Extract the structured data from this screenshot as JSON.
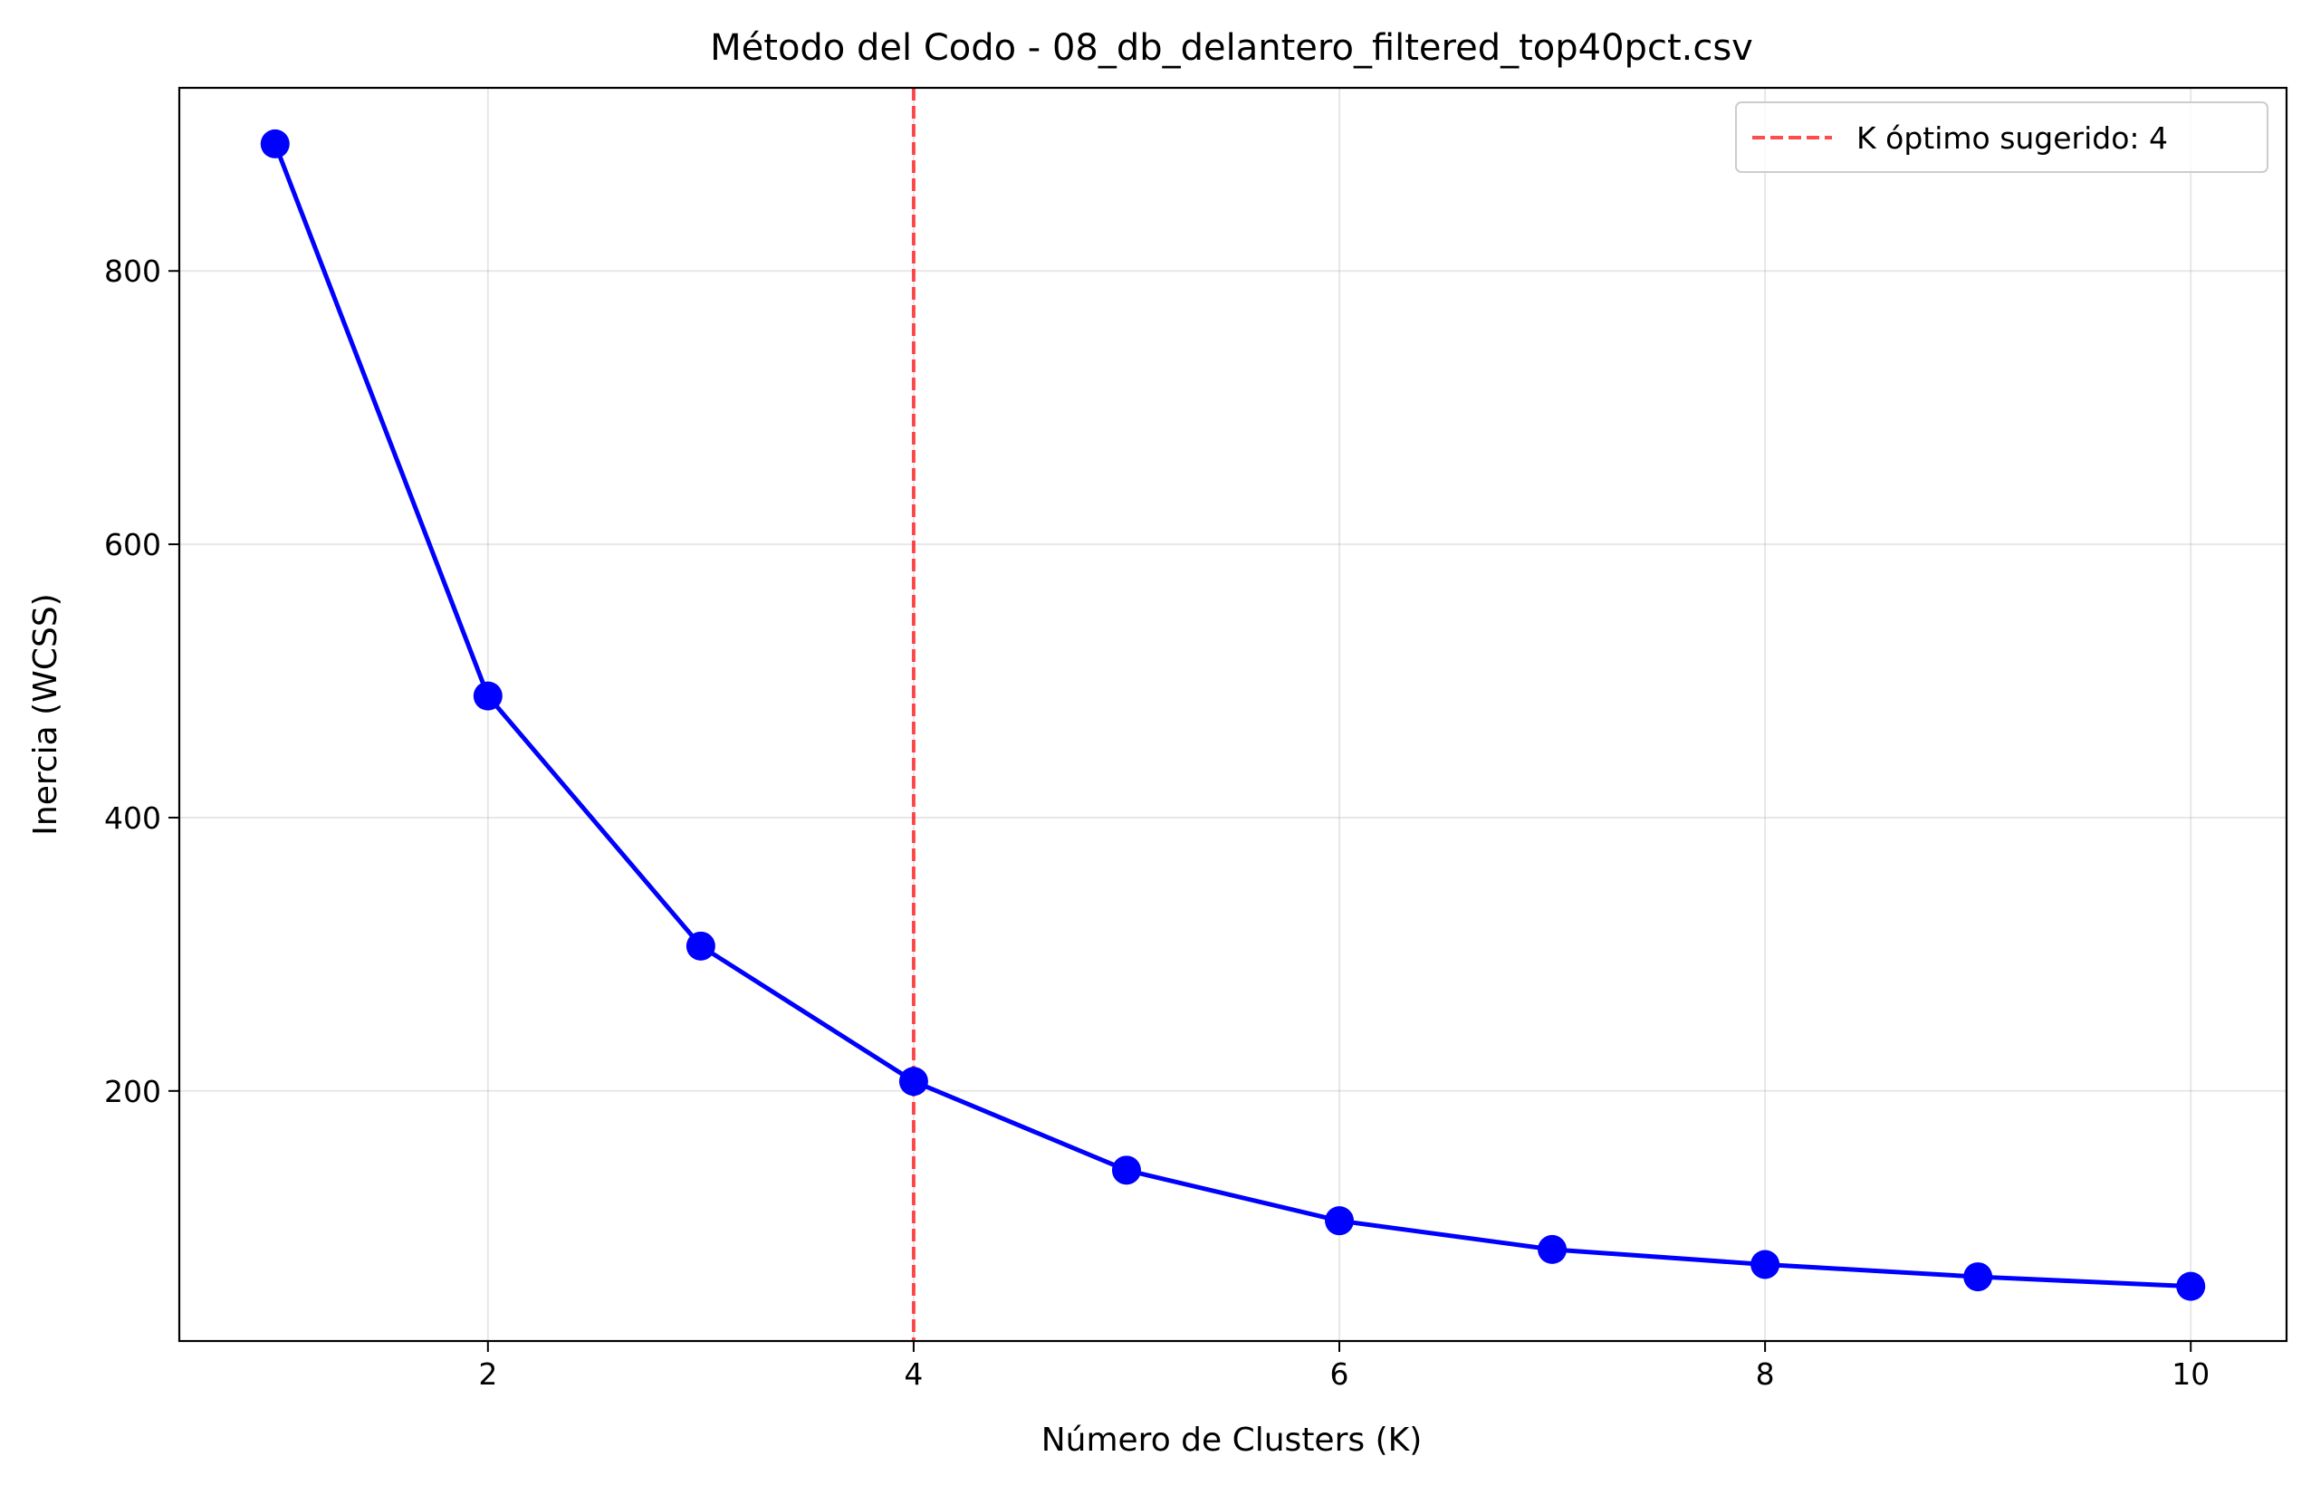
{
  "chart_data": {
    "type": "line",
    "title": "Método del Codo - 08_db_delantero_filtered_top40pct.csv",
    "xlabel": "Número de Clusters (K)",
    "ylabel": "Inercia (WCSS)",
    "x": [
      1,
      2,
      3,
      4,
      5,
      6,
      7,
      8,
      9,
      10
    ],
    "series": [
      {
        "values": [
          893,
          489,
          306,
          207,
          142,
          105,
          84,
          73,
          64,
          57
        ],
        "color": "#0000ff",
        "marker": "circle"
      }
    ],
    "xlim": [
      0.55,
      10.45
    ],
    "ylim": [
      17,
      934
    ],
    "xticks": [
      2,
      4,
      6,
      8,
      10
    ],
    "yticks": [
      200,
      400,
      600,
      800
    ],
    "grid": true,
    "reference_line": {
      "orientation": "vertical",
      "x": 4,
      "style": "dashed",
      "color": "#ff0000",
      "label": "K óptimo sugerido: 4"
    },
    "legend": {
      "position": "top-right",
      "entries": [
        "K óptimo sugerido: 4"
      ]
    }
  }
}
